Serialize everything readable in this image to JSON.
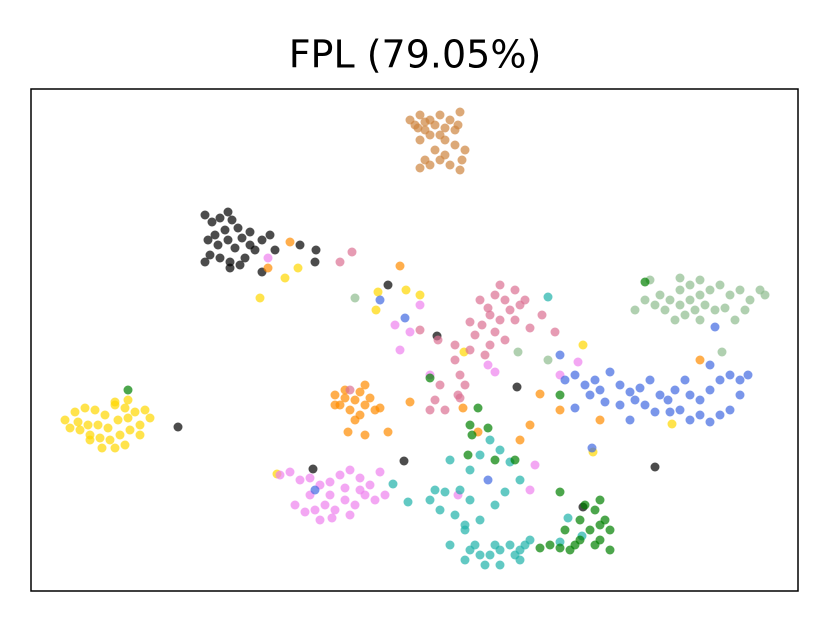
{
  "chart_data": {
    "type": "scatter",
    "title": "FPL (79.05%)",
    "xlim": [
      31,
      798
    ],
    "ylim": [
      591,
      89
    ],
    "series": [
      {
        "color": "#cd853f",
        "x": [
          410,
          415,
          420,
          425,
          430,
          435,
          440,
          445,
          450,
          455,
          460,
          458,
          440,
          430,
          420,
          445,
          435,
          445,
          440,
          425,
          430,
          450,
          460,
          465,
          455,
          425,
          418,
          462,
          420
        ],
        "values": [
          120,
          125,
          115,
          130,
          120,
          125,
          115,
          128,
          120,
          130,
          112,
          125,
          135,
          135,
          140,
          140,
          150,
          155,
          160,
          160,
          165,
          165,
          170,
          150,
          145,
          122,
          128,
          160,
          168
        ]
      },
      {
        "color": "#000000",
        "x": [
          205,
          212,
          220,
          228,
          232,
          238,
          225,
          215,
          208,
          218,
          228,
          235,
          242,
          250,
          210,
          220,
          230,
          240,
          205,
          245,
          255,
          250,
          262,
          270,
          275,
          300,
          316,
          315,
          388,
          437,
          517,
          583,
          655,
          404,
          313,
          178,
          230,
          262
        ],
        "values": [
          215,
          222,
          218,
          212,
          220,
          228,
          230,
          235,
          240,
          245,
          240,
          248,
          238,
          245,
          255,
          258,
          262,
          265,
          262,
          258,
          250,
          232,
          240,
          235,
          250,
          245,
          250,
          262,
          285,
          336,
          387,
          507,
          467,
          461,
          469,
          427,
          268,
          272
        ]
      },
      {
        "color": "#ffd700",
        "x": [
          75,
          85,
          95,
          105,
          115,
          125,
          135,
          145,
          150,
          140,
          130,
          120,
          110,
          100,
          90,
          80,
          70,
          65,
          78,
          88,
          98,
          108,
          118,
          128,
          140,
          125,
          115,
          102,
          90,
          115,
          128,
          260,
          285,
          298,
          378,
          376,
          406,
          420,
          583,
          593,
          672,
          277,
          464
        ],
        "values": [
          412,
          408,
          410,
          415,
          405,
          408,
          412,
          410,
          418,
          425,
          430,
          435,
          440,
          438,
          435,
          430,
          428,
          420,
          422,
          425,
          425,
          428,
          420,
          418,
          435,
          445,
          448,
          448,
          440,
          402,
          400,
          298,
          278,
          268,
          292,
          310,
          290,
          295,
          345,
          452,
          424,
          474,
          352
        ]
      },
      {
        "color": "#ff8c00",
        "x": [
          335,
          340,
          345,
          350,
          355,
          360,
          365,
          370,
          375,
          380,
          345,
          335,
          360,
          355,
          365,
          348,
          388,
          410,
          290,
          268,
          400,
          365,
          463,
          478,
          520,
          530,
          540,
          560,
          700,
          600
        ],
        "values": [
          395,
          405,
          398,
          410,
          400,
          392,
          405,
          398,
          410,
          408,
          390,
          405,
          415,
          420,
          435,
          432,
          432,
          402,
          242,
          268,
          266,
          385,
          408,
          432,
          440,
          425,
          394,
          410,
          360,
          420
        ]
      },
      {
        "color": "#ee82ee",
        "x": [
          280,
          290,
          300,
          310,
          320,
          330,
          340,
          350,
          360,
          370,
          380,
          385,
          375,
          365,
          355,
          345,
          335,
          325,
          315,
          305,
          295,
          310,
          330,
          345,
          360,
          320,
          332,
          350,
          400,
          420,
          410,
          395,
          430,
          488,
          495,
          535,
          578,
          560,
          530,
          458,
          268
        ],
        "values": [
          475,
          472,
          480,
          478,
          485,
          482,
          475,
          470,
          478,
          485,
          472,
          495,
          500,
          495,
          505,
          500,
          510,
          505,
          510,
          512,
          505,
          495,
          495,
          488,
          490,
          520,
          518,
          515,
          350,
          305,
          332,
          325,
          375,
          365,
          372,
          465,
          362,
          375,
          490,
          495,
          258
        ]
      },
      {
        "color": "#db7093",
        "x": [
          480,
          488,
          495,
          500,
          505,
          510,
          515,
          520,
          525,
          515,
          490,
          482,
          470,
          500,
          495,
          505,
          490,
          475,
          485,
          470,
          455,
          460,
          465,
          458,
          440,
          435,
          430,
          445,
          460,
          438,
          555,
          530,
          420,
          542,
          455,
          352,
          340,
          350
        ],
        "values": [
          300,
          308,
          295,
          285,
          300,
          310,
          320,
          305,
          300,
          290,
          315,
          325,
          322,
          320,
          332,
          340,
          345,
          335,
          355,
          350,
          345,
          375,
          385,
          395,
          385,
          400,
          410,
          410,
          398,
          340,
          332,
          328,
          330,
          315,
          360,
          252,
          262,
          390
        ]
      },
      {
        "color": "#8fbc8f",
        "x": [
          635,
          645,
          655,
          660,
          670,
          680,
          690,
          700,
          710,
          720,
          730,
          740,
          750,
          760,
          765,
          745,
          735,
          725,
          715,
          705,
          695,
          685,
          675,
          665,
          680,
          690,
          700,
          650,
          680,
          700,
          355,
          518,
          548,
          722
        ],
        "values": [
          310,
          300,
          305,
          295,
          300,
          290,
          285,
          280,
          290,
          285,
          295,
          290,
          300,
          290,
          295,
          310,
          320,
          308,
          310,
          305,
          310,
          315,
          320,
          310,
          305,
          300,
          295,
          280,
          278,
          320,
          298,
          352,
          360,
          352
        ]
      },
      {
        "color": "#4169e1",
        "x": [
          565,
          575,
          585,
          595,
          600,
          610,
          620,
          630,
          640,
          650,
          660,
          668,
          675,
          685,
          690,
          700,
          710,
          720,
          730,
          740,
          748,
          740,
          730,
          720,
          710,
          700,
          690,
          680,
          670,
          655,
          645,
          635,
          620,
          605,
          590,
          630,
          575,
          715,
          710,
          592,
          405,
          488,
          315,
          380,
          560
        ],
        "values": [
          380,
          375,
          385,
          380,
          390,
          372,
          385,
          392,
          388,
          380,
          395,
          400,
          390,
          380,
          395,
          400,
          390,
          380,
          375,
          380,
          375,
          395,
          410,
          415,
          422,
          415,
          420,
          410,
          412,
          412,
          405,
          400,
          405,
          402,
          395,
          420,
          408,
          327,
          365,
          448,
          318,
          480,
          490,
          300,
          355
        ]
      },
      {
        "color": "#20b2aa",
        "x": [
          465,
          470,
          475,
          480,
          485,
          490,
          495,
          500,
          510,
          515,
          520,
          525,
          530,
          480,
          465,
          455,
          440,
          430,
          445,
          460,
          470,
          480,
          490,
          500,
          510,
          520,
          505,
          495,
          470,
          450,
          435,
          408,
          393,
          465,
          548,
          568,
          582,
          520,
          500,
          560,
          450
        ],
        "values": [
          560,
          550,
          545,
          555,
          565,
          555,
          545,
          550,
          545,
          555,
          550,
          545,
          540,
          520,
          530,
          515,
          510,
          500,
          492,
          490,
          470,
          455,
          440,
          450,
          462,
          480,
          492,
          505,
          500,
          460,
          490,
          502,
          484,
          525,
          297,
          518,
          536,
          560,
          565,
          542,
          545
        ]
      },
      {
        "color": "#008000",
        "x": [
          128,
          645,
          430,
          478,
          470,
          472,
          488,
          495,
          515,
          560,
          560,
          585,
          595,
          600,
          605,
          610,
          590,
          580,
          575,
          570,
          560,
          550,
          540,
          600,
          610,
          595,
          580,
          565,
          600,
          468
        ],
        "values": [
          390,
          282,
          378,
          408,
          425,
          435,
          428,
          460,
          460,
          395,
          492,
          505,
          510,
          500,
          520,
          530,
          530,
          540,
          545,
          550,
          548,
          545,
          548,
          540,
          550,
          545,
          520,
          530,
          525,
          455
        ]
      }
    ]
  }
}
